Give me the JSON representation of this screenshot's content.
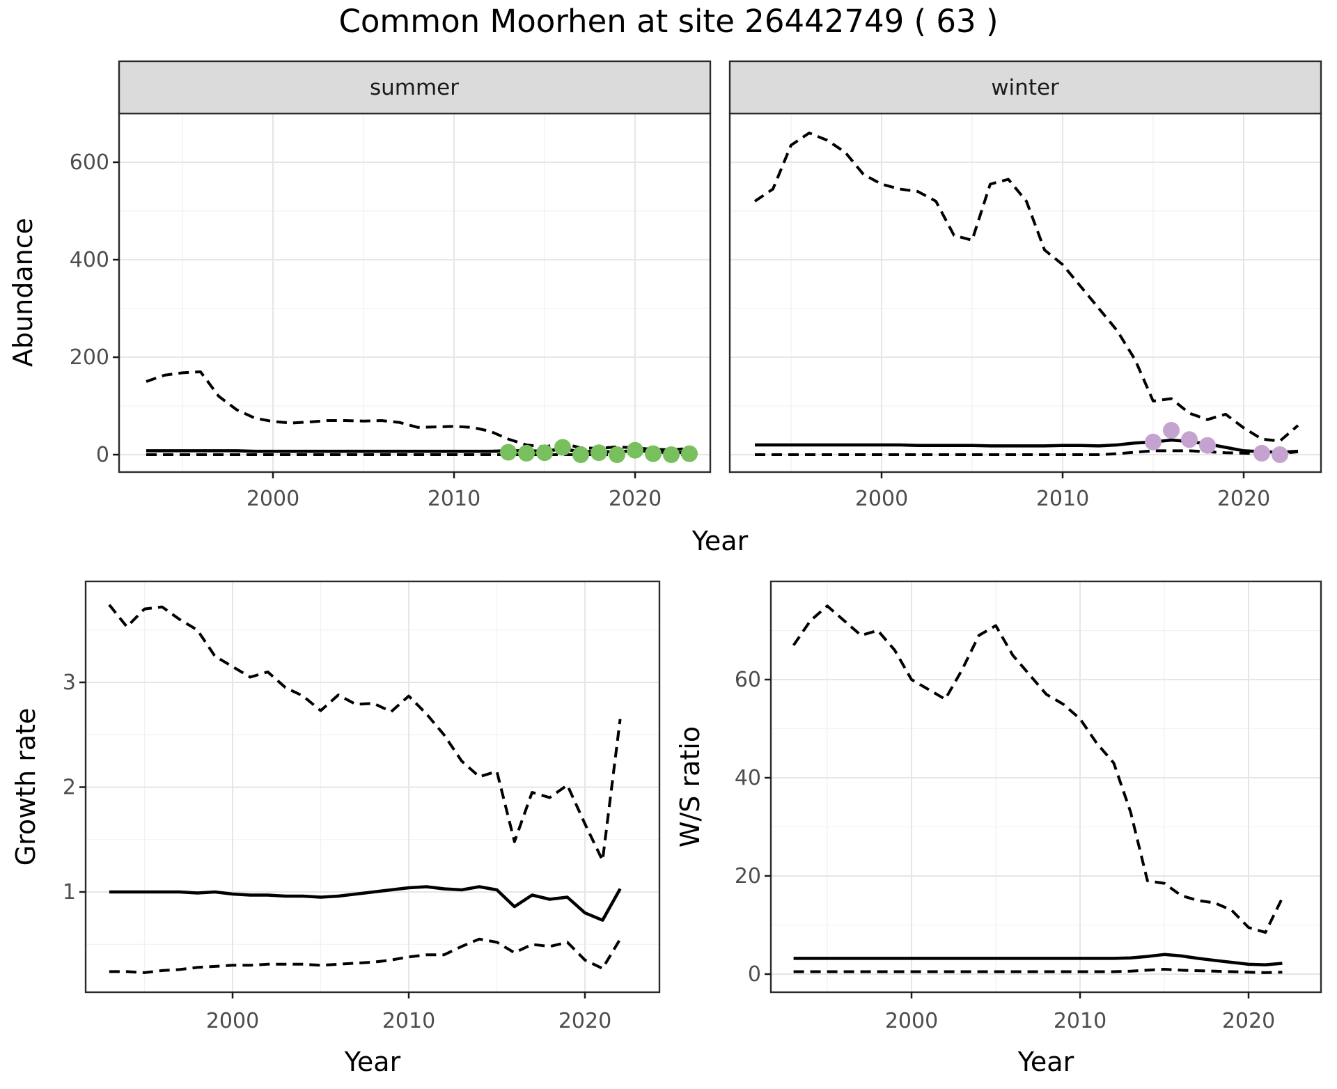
{
  "title": "Common Moorhen at site 26442749 ( 63 )",
  "top": {
    "facets": [
      "summer",
      "winter"
    ],
    "ylabel": "Abundance",
    "xlabel": "Year"
  },
  "bottom_left": {
    "ylabel": "Growth rate",
    "xlabel": "Year"
  },
  "bottom_right": {
    "ylabel": "W/S ratio",
    "xlabel": "Year"
  },
  "colors": {
    "summer_points": "#77c05d",
    "winter_points": "#c4a3d1",
    "line": "#000000",
    "grid_major": "#e6e6e6",
    "grid_minor": "#f2f2f2",
    "strip_bg": "#dbdbdb",
    "panel_border": "#2b2b2b",
    "tick_text": "#4d4d4d"
  },
  "chart_data": [
    {
      "type": "line",
      "facet": "summer",
      "xlabel": "Year",
      "ylabel": "Abundance",
      "xlim": [
        1991.5,
        2024.2
      ],
      "ylim": [
        -35,
        700
      ],
      "xticks": [
        2000,
        2010,
        2020
      ],
      "xminor": [
        1995,
        2005,
        2015
      ],
      "yticks": [
        0,
        200,
        400,
        600
      ],
      "yminor": [
        100,
        300,
        500,
        700
      ],
      "grid": true,
      "legend": false,
      "x": [
        1993,
        1994,
        1995,
        1996,
        1997,
        1998,
        1999,
        2000,
        2001,
        2002,
        2003,
        2004,
        2005,
        2006,
        2007,
        2008,
        2009,
        2010,
        2011,
        2012,
        2013,
        2014,
        2015,
        2016,
        2017,
        2018,
        2019,
        2020,
        2021,
        2022,
        2023
      ],
      "series": [
        {
          "name": "estimate",
          "style": "solid",
          "values": [
            8,
            8,
            8,
            8,
            8,
            8,
            7,
            7,
            7,
            7,
            7,
            7,
            7,
            7,
            7,
            7,
            7,
            7,
            7,
            7,
            8,
            8,
            7,
            12,
            6,
            7,
            5,
            9,
            6,
            4,
            5
          ]
        },
        {
          "name": "ci_upper",
          "style": "dashed",
          "values": [
            150,
            163,
            168,
            170,
            120,
            92,
            75,
            68,
            65,
            67,
            70,
            70,
            69,
            70,
            66,
            56,
            57,
            58,
            56,
            48,
            32,
            20,
            16,
            23,
            14,
            13,
            16,
            14,
            11,
            10,
            13
          ]
        },
        {
          "name": "ci_lower",
          "style": "dashed",
          "values": [
            0,
            0,
            0,
            0,
            0,
            0,
            0,
            0,
            0,
            0,
            0,
            0,
            0,
            0,
            0,
            0,
            0,
            0,
            0,
            0,
            0,
            0,
            0,
            0,
            0,
            0,
            0,
            0,
            0,
            0,
            0
          ]
        }
      ],
      "points": {
        "name": "observed_summer_counts",
        "x": [
          2013,
          2014,
          2015,
          2016,
          2017,
          2018,
          2019,
          2020,
          2021,
          2022,
          2023
        ],
        "y": [
          5,
          3,
          4,
          15,
          0,
          4,
          0,
          9,
          2,
          0,
          2
        ]
      }
    },
    {
      "type": "line",
      "facet": "winter",
      "xlabel": "Year",
      "ylabel": "Abundance",
      "xlim": [
        1991.6,
        2024.3
      ],
      "ylim": [
        -35,
        700
      ],
      "xticks": [
        2000,
        2010,
        2020
      ],
      "xminor": [
        1995,
        2005,
        2015
      ],
      "yticks": [
        0,
        200,
        400,
        600
      ],
      "yminor": [
        100,
        300,
        500,
        700
      ],
      "grid": true,
      "legend": false,
      "x": [
        1993,
        1994,
        1995,
        1996,
        1997,
        1998,
        1999,
        2000,
        2001,
        2002,
        2003,
        2004,
        2005,
        2006,
        2007,
        2008,
        2009,
        2010,
        2011,
        2012,
        2013,
        2014,
        2015,
        2016,
        2017,
        2018,
        2019,
        2020,
        2021,
        2022,
        2023
      ],
      "series": [
        {
          "name": "estimate",
          "style": "solid",
          "values": [
            20,
            20,
            20,
            20,
            20,
            20,
            20,
            20,
            20,
            19,
            19,
            19,
            19,
            18,
            18,
            18,
            18,
            19,
            19,
            18,
            20,
            24,
            26,
            30,
            27,
            22,
            15,
            8,
            6,
            5,
            7
          ]
        },
        {
          "name": "ci_upper",
          "style": "dashed",
          "values": [
            520,
            545,
            635,
            660,
            645,
            620,
            575,
            555,
            545,
            540,
            520,
            450,
            440,
            555,
            565,
            520,
            420,
            390,
            345,
            300,
            255,
            195,
            110,
            115,
            85,
            72,
            83,
            55,
            32,
            28,
            60
          ]
        },
        {
          "name": "ci_lower",
          "style": "dashed",
          "values": [
            0,
            0,
            0,
            0,
            0,
            0,
            0,
            0,
            0,
            0,
            0,
            0,
            0,
            0,
            0,
            0,
            0,
            0,
            0,
            0,
            2,
            5,
            8,
            8,
            8,
            6,
            4,
            3,
            2,
            2,
            6
          ]
        }
      ],
      "points": {
        "name": "observed_winter_counts",
        "x": [
          2015,
          2016,
          2017,
          2018,
          2021,
          2022
        ],
        "y": [
          26,
          50,
          31,
          19,
          3,
          0
        ]
      }
    },
    {
      "type": "line",
      "facet": "growth_rate",
      "xlabel": "Year",
      "ylabel": "Growth rate",
      "xlim": [
        1991.7,
        2024.2
      ],
      "ylim": [
        0.04,
        3.96
      ],
      "xticks": [
        2000,
        2010,
        2020
      ],
      "xminor": [
        1995,
        2005,
        2015
      ],
      "yticks": [
        1,
        2,
        3
      ],
      "yminor": [
        0.5,
        1.5,
        2.5,
        3.5
      ],
      "grid": true,
      "legend": false,
      "x": [
        1993,
        1994,
        1995,
        1996,
        1997,
        1998,
        1999,
        2000,
        2001,
        2002,
        2003,
        2004,
        2005,
        2006,
        2007,
        2008,
        2009,
        2010,
        2011,
        2012,
        2013,
        2014,
        2015,
        2016,
        2017,
        2018,
        2019,
        2020,
        2021,
        2022
      ],
      "series": [
        {
          "name": "estimate",
          "style": "solid",
          "values": [
            1.0,
            1.0,
            1.0,
            1.0,
            1.0,
            0.99,
            1.0,
            0.98,
            0.97,
            0.97,
            0.96,
            0.96,
            0.95,
            0.96,
            0.98,
            1.0,
            1.02,
            1.04,
            1.05,
            1.03,
            1.02,
            1.05,
            1.02,
            0.86,
            0.97,
            0.93,
            0.95,
            0.8,
            0.73,
            1.03
          ]
        },
        {
          "name": "ci_upper",
          "style": "dashed",
          "values": [
            3.74,
            3.53,
            3.7,
            3.72,
            3.6,
            3.5,
            3.25,
            3.15,
            3.05,
            3.1,
            2.95,
            2.87,
            2.73,
            2.88,
            2.79,
            2.8,
            2.72,
            2.87,
            2.7,
            2.5,
            2.25,
            2.1,
            2.15,
            1.48,
            1.95,
            1.9,
            2.02,
            1.65,
            1.3,
            2.65
          ]
        },
        {
          "name": "ci_lower",
          "style": "dashed",
          "values": [
            0.24,
            0.24,
            0.23,
            0.25,
            0.26,
            0.28,
            0.29,
            0.3,
            0.3,
            0.31,
            0.31,
            0.31,
            0.3,
            0.31,
            0.32,
            0.33,
            0.35,
            0.38,
            0.4,
            0.4,
            0.48,
            0.55,
            0.52,
            0.42,
            0.5,
            0.48,
            0.52,
            0.35,
            0.27,
            0.55
          ]
        }
      ]
    },
    {
      "type": "line",
      "facet": "ws_ratio",
      "xlabel": "Year",
      "ylabel": "W/S ratio",
      "xlim": [
        1991.7,
        2024.3
      ],
      "ylim": [
        -3.7,
        80
      ],
      "xticks": [
        2000,
        2010,
        2020
      ],
      "xminor": [
        1995,
        2005,
        2015
      ],
      "yticks": [
        0,
        20,
        40,
        60
      ],
      "yminor": [
        10,
        30,
        50,
        70
      ],
      "grid": true,
      "legend": false,
      "x": [
        1993,
        1994,
        1995,
        1996,
        1997,
        1998,
        1999,
        2000,
        2001,
        2002,
        2003,
        2004,
        2005,
        2006,
        2007,
        2008,
        2009,
        2010,
        2011,
        2012,
        2013,
        2014,
        2015,
        2016,
        2017,
        2018,
        2019,
        2020,
        2021,
        2022
      ],
      "series": [
        {
          "name": "estimate",
          "style": "solid",
          "values": [
            3.2,
            3.2,
            3.2,
            3.2,
            3.2,
            3.2,
            3.2,
            3.2,
            3.2,
            3.2,
            3.2,
            3.2,
            3.2,
            3.2,
            3.2,
            3.2,
            3.2,
            3.2,
            3.2,
            3.2,
            3.3,
            3.6,
            4.0,
            3.7,
            3.2,
            2.8,
            2.4,
            2.0,
            1.9,
            2.2
          ]
        },
        {
          "name": "ci_upper",
          "style": "dashed",
          "values": [
            67,
            72,
            75,
            72,
            69,
            70,
            66,
            60,
            58,
            56,
            62,
            69,
            71,
            65,
            61,
            57,
            55,
            52,
            47,
            43,
            33,
            19,
            18.5,
            16,
            15,
            14.5,
            13,
            9.5,
            8.5,
            15.5
          ]
        },
        {
          "name": "ci_lower",
          "style": "dashed",
          "values": [
            0.5,
            0.5,
            0.5,
            0.5,
            0.5,
            0.5,
            0.5,
            0.5,
            0.5,
            0.5,
            0.5,
            0.5,
            0.5,
            0.5,
            0.5,
            0.5,
            0.5,
            0.5,
            0.5,
            0.5,
            0.6,
            0.8,
            1.0,
            0.8,
            0.7,
            0.6,
            0.5,
            0.4,
            0.3,
            0.4
          ]
        }
      ]
    }
  ]
}
